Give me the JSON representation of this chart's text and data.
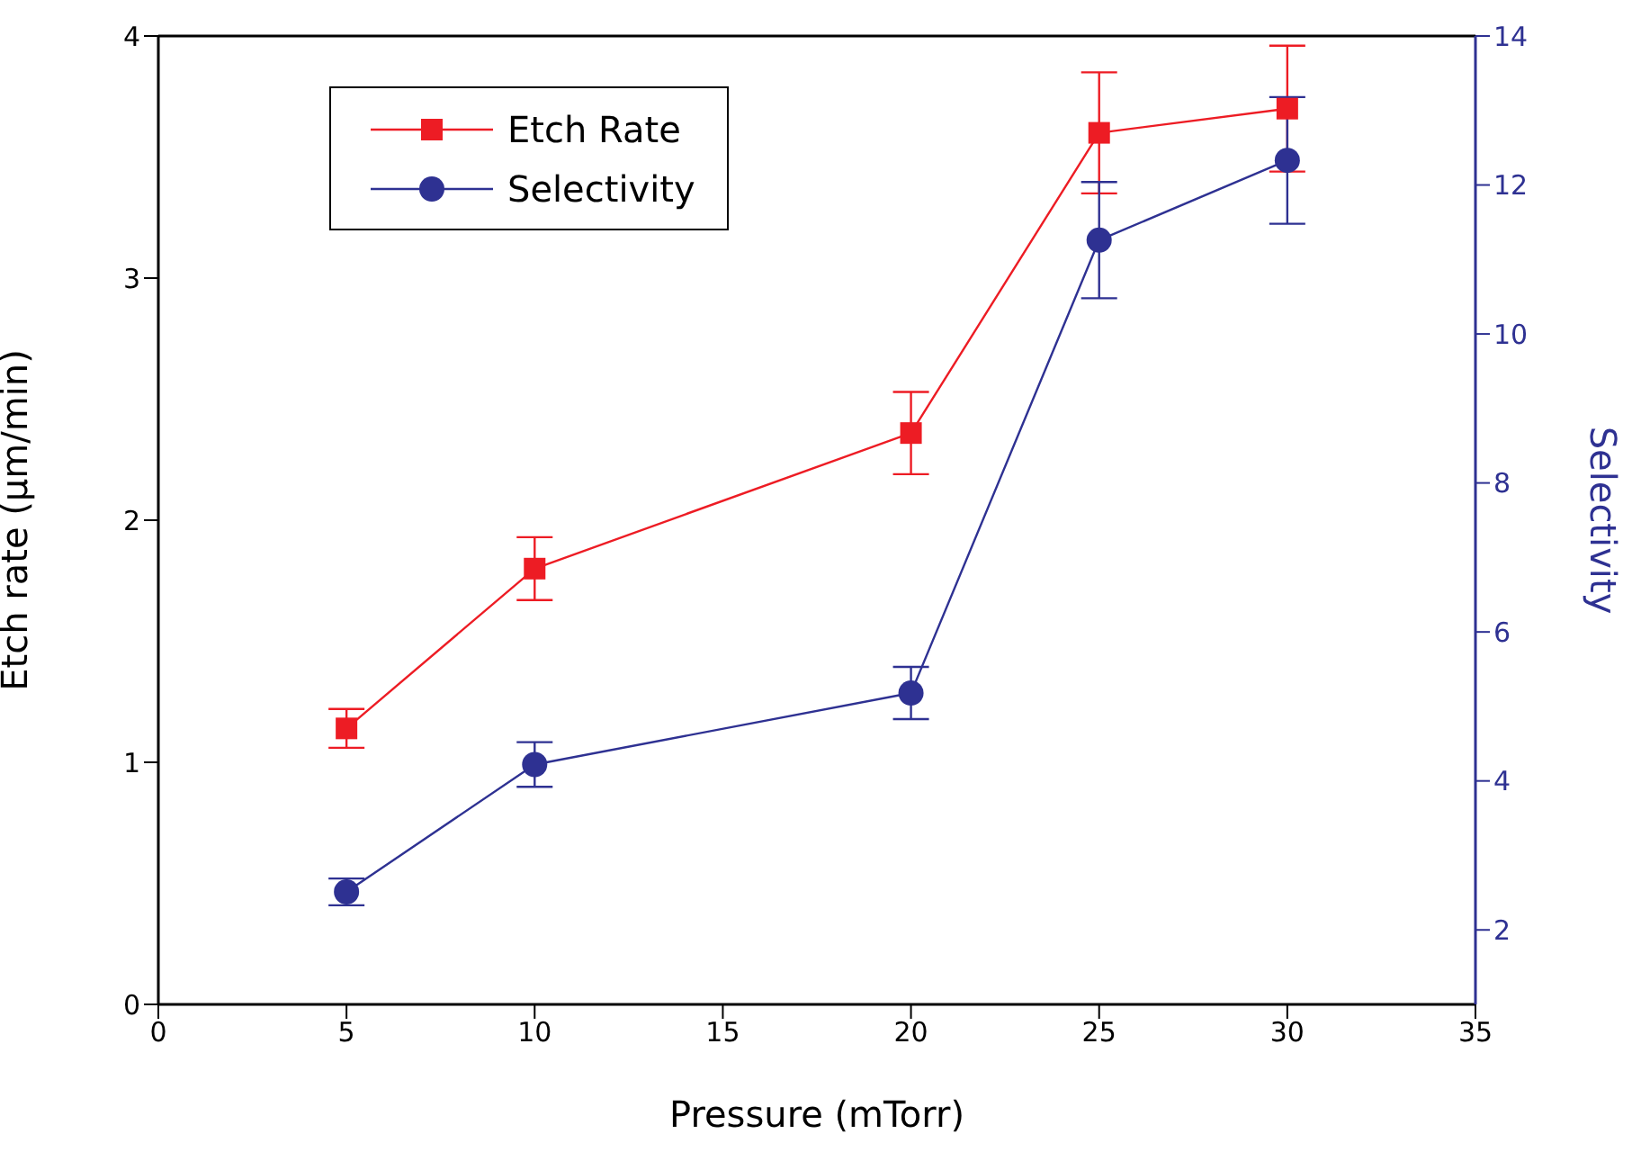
{
  "chart_data": {
    "type": "line",
    "xlabel": "Pressure (mTorr)",
    "ylabel": "Etch rate (µm/min)",
    "y2label": "Selectivity",
    "x": [
      5,
      10,
      20,
      25,
      30
    ],
    "series": [
      {
        "name": "Etch Rate",
        "color": "#ed1c24",
        "marker": "square",
        "values": [
          1.14,
          1.8,
          2.36,
          3.6,
          3.7
        ],
        "errors": [
          0.08,
          0.13,
          0.17,
          0.25,
          0.26
        ]
      },
      {
        "name": "Selectivity",
        "color": "#2e3192",
        "marker": "circle",
        "axis": "y2",
        "values": [
          2.51,
          4.22,
          5.18,
          11.26,
          12.33
        ],
        "errors": [
          0.18,
          0.3,
          0.35,
          0.78,
          0.85
        ]
      }
    ],
    "xlim": [
      0,
      35
    ],
    "xticks": [
      0,
      5,
      10,
      15,
      20,
      25,
      30,
      35
    ],
    "ylim": [
      0,
      4
    ],
    "yticks": [
      0,
      1,
      2,
      3,
      4
    ],
    "y2lim": [
      1,
      14
    ],
    "y2ticks": [
      2,
      4,
      6,
      8,
      10,
      12,
      14
    ],
    "grid": false,
    "legend": "top left",
    "line_style": "solid"
  }
}
